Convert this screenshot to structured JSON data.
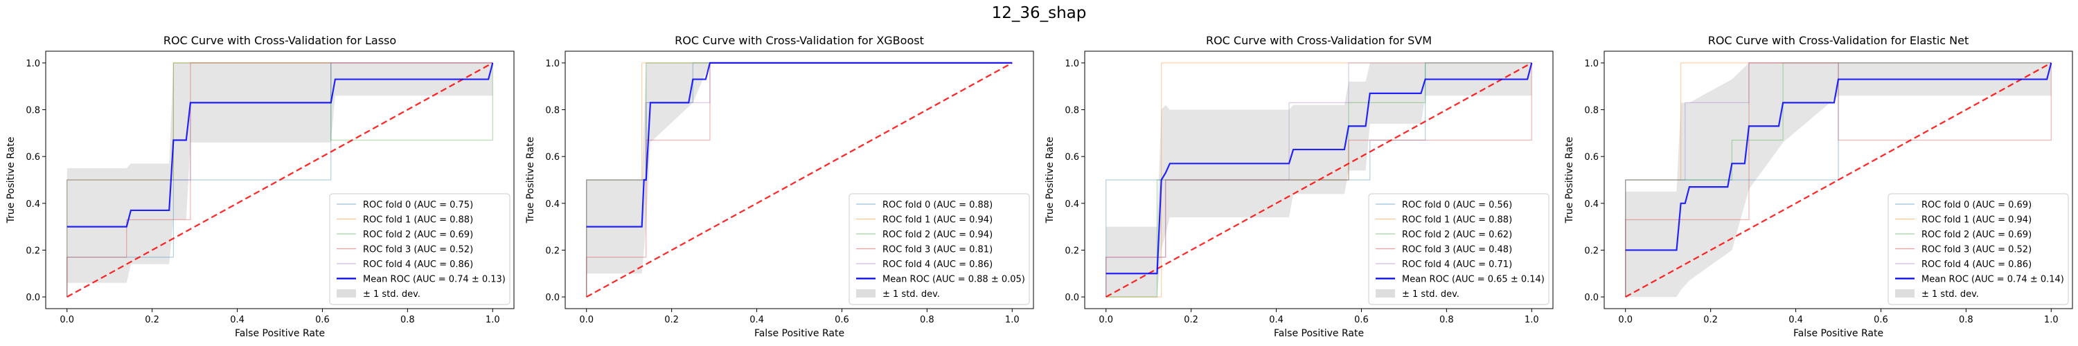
{
  "suptitle": "12_36_shap",
  "colors": {
    "fold0": "#1f77b4",
    "fold1": "#ff7f0e",
    "fold2": "#2ca02c",
    "fold3": "#d62728",
    "fold4": "#9467bd",
    "mean": "#0000ff",
    "chance": "#ff0000",
    "std_band": "#bbbbbb"
  },
  "chart_data": [
    {
      "type": "line",
      "title": "ROC Curve with Cross-Validation for Lasso",
      "xlabel": "False Positive Rate",
      "ylabel": "True Positive Rate",
      "xlim": [
        -0.05,
        1.05
      ],
      "ylim": [
        -0.05,
        1.05
      ],
      "xticks": [
        "0.0",
        "0.2",
        "0.4",
        "0.6",
        "0.8",
        "1.0"
      ],
      "yticks": [
        "0.0",
        "0.2",
        "0.4",
        "0.6",
        "0.8",
        "1.0"
      ],
      "legend_position": "lower right",
      "folds": [
        {
          "label": "ROC fold 0 (AUC = 0.75)",
          "points": [
            [
              0,
              0
            ],
            [
              0,
              0.17
            ],
            [
              0.25,
              0.17
            ],
            [
              0.25,
              0.5
            ],
            [
              0.62,
              0.5
            ],
            [
              0.62,
              1
            ],
            [
              1,
              1
            ]
          ]
        },
        {
          "label": "ROC fold 1 (AUC = 0.88)",
          "points": [
            [
              0,
              0
            ],
            [
              0,
              0.5
            ],
            [
              0.14,
              0.5
            ],
            [
              0.14,
              0.5
            ],
            [
              0.25,
              0.5
            ],
            [
              0.25,
              1
            ],
            [
              1,
              1
            ]
          ]
        },
        {
          "label": "ROC fold 2 (AUC = 0.69)",
          "points": [
            [
              0,
              0
            ],
            [
              0,
              0.5
            ],
            [
              0.25,
              0.5
            ],
            [
              0.25,
              1
            ],
            [
              0.62,
              1
            ],
            [
              0.62,
              0.67
            ],
            [
              1,
              0.67
            ],
            [
              1,
              1
            ]
          ]
        },
        {
          "label": "ROC fold 3 (AUC = 0.52)",
          "points": [
            [
              0,
              0
            ],
            [
              0,
              0.17
            ],
            [
              0.14,
              0.17
            ],
            [
              0.14,
              0.33
            ],
            [
              0.29,
              0.33
            ],
            [
              0.29,
              1
            ],
            [
              1,
              1
            ]
          ]
        },
        {
          "label": "ROC fold 4 (AUC = 0.86)",
          "points": [
            [
              0,
              0
            ],
            [
              0,
              0.5
            ],
            [
              0.29,
              0.5
            ],
            [
              0.29,
              0.83
            ],
            [
              0.62,
              0.83
            ],
            [
              0.62,
              1
            ],
            [
              1,
              1
            ]
          ]
        }
      ],
      "mean": {
        "label": "Mean ROC (AUC = 0.74 ± 0.13)",
        "points": [
          [
            0,
            0.3
          ],
          [
            0.14,
            0.3
          ],
          [
            0.15,
            0.37
          ],
          [
            0.24,
            0.37
          ],
          [
            0.25,
            0.67
          ],
          [
            0.28,
            0.67
          ],
          [
            0.29,
            0.83
          ],
          [
            0.62,
            0.83
          ],
          [
            0.63,
            0.93
          ],
          [
            0.99,
            0.93
          ],
          [
            1,
            1
          ]
        ]
      },
      "std": {
        "label": "± 1 std. dev.",
        "x": [
          0,
          0.14,
          0.15,
          0.24,
          0.25,
          0.28,
          0.29,
          0.62,
          0.63,
          1
        ],
        "upper": [
          0.55,
          0.55,
          0.57,
          0.57,
          1,
          1,
          1,
          1,
          1,
          1
        ],
        "lower": [
          0.06,
          0.06,
          0.14,
          0.14,
          0.33,
          0.33,
          0.66,
          0.66,
          0.86,
          0.86
        ]
      },
      "chance": [
        [
          0,
          0
        ],
        [
          1,
          1
        ]
      ]
    },
    {
      "type": "line",
      "title": "ROC Curve with Cross-Validation for XGBoost",
      "xlabel": "False Positive Rate",
      "ylabel": "True Positive Rate",
      "xlim": [
        -0.05,
        1.05
      ],
      "ylim": [
        -0.05,
        1.05
      ],
      "xticks": [
        "0.0",
        "0.2",
        "0.4",
        "0.6",
        "0.8",
        "1.0"
      ],
      "yticks": [
        "0.0",
        "0.2",
        "0.4",
        "0.6",
        "0.8",
        "1.0"
      ],
      "legend_position": "lower right",
      "folds": [
        {
          "label": "ROC fold 0 (AUC = 0.88)",
          "points": [
            [
              0,
              0
            ],
            [
              0,
              0.5
            ],
            [
              0.14,
              0.5
            ],
            [
              0.14,
              0.83
            ],
            [
              0.25,
              0.83
            ],
            [
              0.25,
              1
            ],
            [
              1,
              1
            ]
          ]
        },
        {
          "label": "ROC fold 1 (AUC = 0.94)",
          "points": [
            [
              0,
              0
            ],
            [
              0,
              0.5
            ],
            [
              0.13,
              0.5
            ],
            [
              0.13,
              1
            ],
            [
              1,
              1
            ]
          ]
        },
        {
          "label": "ROC fold 2 (AUC = 0.94)",
          "points": [
            [
              0,
              0
            ],
            [
              0,
              0.5
            ],
            [
              0.14,
              0.5
            ],
            [
              0.14,
              1
            ],
            [
              1,
              1
            ]
          ]
        },
        {
          "label": "ROC fold 3 (AUC = 0.81)",
          "points": [
            [
              0,
              0
            ],
            [
              0,
              0.17
            ],
            [
              0.14,
              0.17
            ],
            [
              0.14,
              0.67
            ],
            [
              0.29,
              0.67
            ],
            [
              0.29,
              1
            ],
            [
              1,
              1
            ]
          ]
        },
        {
          "label": "ROC fold 4 (AUC = 0.86)",
          "points": [
            [
              0,
              0
            ],
            [
              0,
              0.5
            ],
            [
              0.14,
              0.5
            ],
            [
              0.14,
              0.83
            ],
            [
              0.29,
              0.83
            ],
            [
              0.29,
              1
            ],
            [
              1,
              1
            ]
          ]
        }
      ],
      "mean": {
        "label": "Mean ROC (AUC = 0.88 ± 0.05)",
        "points": [
          [
            0,
            0.3
          ],
          [
            0.13,
            0.3
          ],
          [
            0.135,
            0.5
          ],
          [
            0.14,
            0.5
          ],
          [
            0.15,
            0.83
          ],
          [
            0.24,
            0.83
          ],
          [
            0.25,
            0.93
          ],
          [
            0.28,
            0.93
          ],
          [
            0.29,
            1
          ],
          [
            1,
            1
          ]
        ]
      },
      "std": {
        "label": "± 1 std. dev.",
        "x": [
          0,
          0.13,
          0.14,
          0.15,
          0.25,
          0.29,
          1
        ],
        "upper": [
          0.5,
          0.5,
          1,
          1,
          1,
          1,
          1
        ],
        "lower": [
          0.1,
          0.1,
          0.3,
          0.66,
          0.83,
          1,
          1
        ]
      },
      "chance": [
        [
          0,
          0
        ],
        [
          1,
          1
        ]
      ]
    },
    {
      "type": "line",
      "title": "ROC Curve with Cross-Validation for SVM",
      "xlabel": "False Positive Rate",
      "ylabel": "True Positive Rate",
      "xlim": [
        -0.05,
        1.05
      ],
      "ylim": [
        -0.05,
        1.05
      ],
      "xticks": [
        "0.0",
        "0.2",
        "0.4",
        "0.6",
        "0.8",
        "1.0"
      ],
      "yticks": [
        "0.0",
        "0.2",
        "0.4",
        "0.6",
        "0.8",
        "1.0"
      ],
      "legend_position": "lower right",
      "folds": [
        {
          "label": "ROC fold 0 (AUC = 0.56)",
          "points": [
            [
              0,
              0
            ],
            [
              0,
              0.5
            ],
            [
              0.62,
              0.5
            ],
            [
              0.62,
              0.67
            ],
            [
              0.75,
              0.67
            ],
            [
              0.75,
              1
            ],
            [
              1,
              1
            ]
          ]
        },
        {
          "label": "ROC fold 1 (AUC = 0.88)",
          "points": [
            [
              0,
              0
            ],
            [
              0.13,
              0
            ],
            [
              0.13,
              1
            ],
            [
              1,
              1
            ]
          ]
        },
        {
          "label": "ROC fold 2 (AUC = 0.62)",
          "points": [
            [
              0,
              0
            ],
            [
              0.12,
              0
            ],
            [
              0.12,
              0.5
            ],
            [
              0.57,
              0.5
            ],
            [
              0.57,
              0.83
            ],
            [
              0.75,
              0.83
            ],
            [
              0.75,
              1
            ],
            [
              1,
              1
            ]
          ]
        },
        {
          "label": "ROC fold 3 (AUC = 0.48)",
          "points": [
            [
              0,
              0
            ],
            [
              0,
              0.17
            ],
            [
              0.14,
              0.17
            ],
            [
              0.14,
              0.5
            ],
            [
              0.57,
              0.5
            ],
            [
              0.57,
              0.67
            ],
            [
              1,
              0.67
            ],
            [
              1,
              1
            ]
          ]
        },
        {
          "label": "ROC fold 4 (AUC = 0.71)",
          "points": [
            [
              0,
              0
            ],
            [
              0,
              0.17
            ],
            [
              0.14,
              0.17
            ],
            [
              0.14,
              0.5
            ],
            [
              0.43,
              0.5
            ],
            [
              0.43,
              0.83
            ],
            [
              0.57,
              0.83
            ],
            [
              0.57,
              1
            ],
            [
              1,
              1
            ]
          ]
        }
      ],
      "mean": {
        "label": "Mean ROC (AUC = 0.65 ± 0.14)",
        "points": [
          [
            0,
            0.1
          ],
          [
            0.12,
            0.1
          ],
          [
            0.13,
            0.5
          ],
          [
            0.14,
            0.53
          ],
          [
            0.15,
            0.57
          ],
          [
            0.43,
            0.57
          ],
          [
            0.44,
            0.63
          ],
          [
            0.56,
            0.63
          ],
          [
            0.57,
            0.73
          ],
          [
            0.61,
            0.73
          ],
          [
            0.62,
            0.87
          ],
          [
            0.74,
            0.87
          ],
          [
            0.75,
            0.93
          ],
          [
            0.99,
            0.93
          ],
          [
            1,
            1
          ]
        ]
      },
      "std": {
        "label": "± 1 std. dev.",
        "x": [
          0,
          0.12,
          0.13,
          0.14,
          0.15,
          0.43,
          0.44,
          0.56,
          0.57,
          0.61,
          0.62,
          0.74,
          0.75,
          1
        ],
        "upper": [
          0.3,
          0.3,
          0.8,
          0.82,
          0.8,
          0.8,
          0.82,
          0.82,
          0.92,
          0.92,
          1,
          1,
          1,
          1
        ],
        "lower": [
          0,
          0,
          0.2,
          0.27,
          0.34,
          0.34,
          0.44,
          0.44,
          0.54,
          0.54,
          0.74,
          0.74,
          0.86,
          0.86
        ]
      },
      "chance": [
        [
          0,
          0
        ],
        [
          1,
          1
        ]
      ]
    },
    {
      "type": "line",
      "title": "ROC Curve with Cross-Validation for Elastic Net",
      "xlabel": "False Positive Rate",
      "ylabel": "True Positive Rate",
      "xlim": [
        -0.05,
        1.05
      ],
      "ylim": [
        -0.05,
        1.05
      ],
      "xticks": [
        "0.0",
        "0.2",
        "0.4",
        "0.6",
        "0.8",
        "1.0"
      ],
      "yticks": [
        "0.0",
        "0.2",
        "0.4",
        "0.6",
        "0.8",
        "1.0"
      ],
      "legend_position": "lower right",
      "folds": [
        {
          "label": "ROC fold 0 (AUC = 0.69)",
          "points": [
            [
              0,
              0
            ],
            [
              0,
              0.5
            ],
            [
              0.25,
              0.5
            ],
            [
              0.25,
              0.5
            ],
            [
              0.5,
              0.5
            ],
            [
              0.5,
              1
            ],
            [
              1,
              1
            ]
          ]
        },
        {
          "label": "ROC fold 1 (AUC = 0.94)",
          "points": [
            [
              0,
              0
            ],
            [
              0,
              0.5
            ],
            [
              0.13,
              0.5
            ],
            [
              0.13,
              1
            ],
            [
              1,
              1
            ]
          ]
        },
        {
          "label": "ROC fold 2 (AUC = 0.69)",
          "points": [
            [
              0,
              0
            ],
            [
              0,
              0.5
            ],
            [
              0.25,
              0.5
            ],
            [
              0.25,
              0.67
            ],
            [
              0.37,
              0.67
            ],
            [
              0.37,
              1
            ],
            [
              1,
              1
            ]
          ]
        },
        {
          "label": "ROC fold 3 (AUC = 0.52)",
          "points": [
            [
              0,
              0
            ],
            [
              0,
              0.33
            ],
            [
              0.29,
              0.33
            ],
            [
              0.29,
              1
            ],
            [
              0.5,
              1
            ],
            [
              0.5,
              0.67
            ],
            [
              1,
              0.67
            ],
            [
              1,
              1
            ]
          ]
        },
        {
          "label": "ROC fold 4 (AUC = 0.86)",
          "points": [
            [
              0,
              0
            ],
            [
              0,
              0.5
            ],
            [
              0.14,
              0.5
            ],
            [
              0.14,
              0.83
            ],
            [
              0.29,
              0.83
            ],
            [
              0.29,
              1
            ],
            [
              1,
              1
            ]
          ]
        }
      ],
      "mean": {
        "label": "Mean ROC (AUC = 0.74 ± 0.14)",
        "points": [
          [
            0,
            0.2
          ],
          [
            0.12,
            0.2
          ],
          [
            0.13,
            0.4
          ],
          [
            0.14,
            0.4
          ],
          [
            0.15,
            0.47
          ],
          [
            0.24,
            0.47
          ],
          [
            0.25,
            0.57
          ],
          [
            0.28,
            0.57
          ],
          [
            0.29,
            0.73
          ],
          [
            0.36,
            0.73
          ],
          [
            0.37,
            0.83
          ],
          [
            0.49,
            0.83
          ],
          [
            0.5,
            0.93
          ],
          [
            0.99,
            0.93
          ],
          [
            1,
            1
          ]
        ]
      },
      "std": {
        "label": "± 1 std. dev.",
        "x": [
          0,
          0.12,
          0.13,
          0.15,
          0.25,
          0.29,
          0.37,
          0.5,
          1
        ],
        "upper": [
          0.45,
          0.45,
          0.83,
          0.83,
          0.93,
          1,
          1,
          1,
          1
        ],
        "lower": [
          0,
          0,
          0.03,
          0.07,
          0.2,
          0.46,
          0.66,
          0.86,
          0.86
        ]
      },
      "chance": [
        [
          0,
          0
        ],
        [
          1,
          1
        ]
      ]
    }
  ]
}
